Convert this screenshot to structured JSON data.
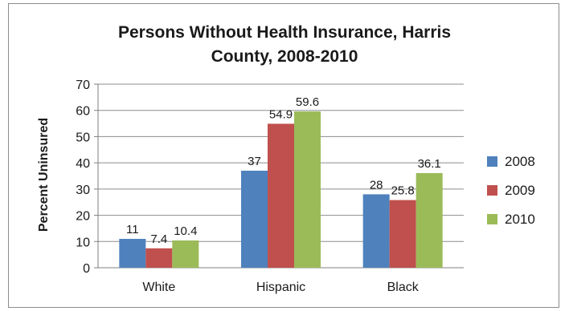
{
  "chart_data": {
    "type": "bar",
    "title_lines": [
      "Persons Without Health Insurance, Harris",
      "County, 2008-2010"
    ],
    "xlabel": "",
    "ylabel": "Percent Uninsured",
    "ylim": [
      0,
      70
    ],
    "yticks": [
      0,
      10,
      20,
      30,
      40,
      50,
      60,
      70
    ],
    "grid": true,
    "legend_position": "right",
    "categories": [
      "White",
      "Hispanic",
      "Black"
    ],
    "series": [
      {
        "name": "2008",
        "color": "#4f81bd",
        "values": [
          11,
          37,
          28
        ],
        "labels": [
          "11",
          "37",
          "28"
        ]
      },
      {
        "name": "2009",
        "color": "#c0504d",
        "values": [
          7.4,
          54.9,
          25.8
        ],
        "labels": [
          "7.4",
          "54.9",
          "25.8"
        ]
      },
      {
        "name": "2010",
        "color": "#9bbb59",
        "values": [
          10.4,
          59.6,
          36.1
        ],
        "labels": [
          "10.4",
          "59.6",
          "36.1"
        ]
      }
    ]
  }
}
